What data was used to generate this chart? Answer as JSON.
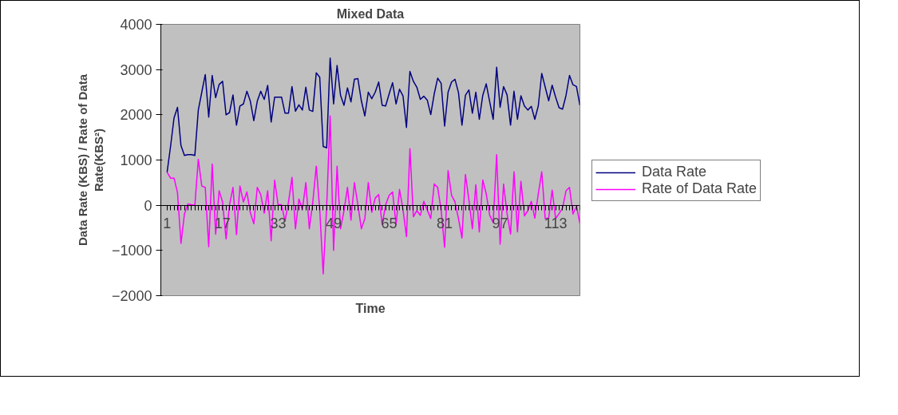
{
  "chart_data": {
    "type": "line",
    "title": "Mixed Data",
    "xlabel": "Time",
    "ylabel": "Data Rate (KBS) / Rate of Data\nRate(KBS²)",
    "categories": [
      "1",
      null,
      null,
      null,
      null,
      null,
      null,
      null,
      null,
      null,
      null,
      null,
      null,
      null,
      null,
      null,
      "17",
      null,
      null,
      null,
      null,
      null,
      null,
      null,
      null,
      null,
      null,
      null,
      null,
      null,
      null,
      null,
      "33",
      null,
      null,
      null,
      null,
      null,
      null,
      null,
      null,
      null,
      null,
      null,
      null,
      null,
      null,
      null,
      "49",
      null,
      null,
      null,
      null,
      null,
      null,
      null,
      null,
      null,
      null,
      null,
      null,
      null,
      null,
      null,
      "65",
      null,
      null,
      null,
      null,
      null,
      null,
      null,
      null,
      null,
      null,
      null,
      null,
      null,
      null,
      null,
      "81",
      null,
      null,
      null,
      null,
      null,
      null,
      null,
      null,
      null,
      null,
      null,
      null,
      null,
      null,
      null,
      "97",
      null,
      null,
      null,
      null,
      null,
      null,
      null,
      null,
      null,
      null,
      null,
      null,
      null,
      null,
      null,
      "113",
      null,
      null,
      null,
      null,
      null,
      null,
      null
    ],
    "series": [
      {
        "name": "Data Rate",
        "color": "#000080",
        "values": [
          730,
          1300,
          1930,
          2165,
          1320,
          1100,
          1120,
          1120,
          1100,
          2105,
          2500,
          2890,
          1950,
          2870,
          2380,
          2670,
          2740,
          2000,
          2050,
          2440,
          1770,
          2195,
          2240,
          2520,
          2300,
          1870,
          2300,
          2520,
          2340,
          2650,
          1840,
          2390,
          2390,
          2390,
          2035,
          2035,
          2625,
          2080,
          2220,
          2105,
          2610,
          2105,
          2075,
          2930,
          2830,
          1300,
          1270,
          3255,
          2240,
          3090,
          2430,
          2210,
          2595,
          2285,
          2785,
          2800,
          2310,
          1975,
          2500,
          2355,
          2500,
          2725,
          2210,
          2195,
          2460,
          2710,
          2240,
          2565,
          2420,
          1720,
          2960,
          2740,
          2610,
          2340,
          2410,
          2325,
          2005,
          2460,
          2810,
          2695,
          1750,
          2500,
          2725,
          2785,
          2490,
          1770,
          2430,
          2550,
          2035,
          2500,
          1900,
          2430,
          2685,
          2285,
          1900,
          3050,
          2165,
          2625,
          2440,
          1770,
          2520,
          1900,
          2420,
          2195,
          2105,
          2185,
          1900,
          2195,
          2915,
          2610,
          2310,
          2655,
          2390,
          2155,
          2125,
          2430,
          2870,
          2665,
          2625,
          2210
        ]
      },
      {
        "name": "Rate of Data Rate",
        "color": "#ff00ff",
        "values": [
          730,
          600,
          600,
          280,
          -845,
          -195,
          30,
          10,
          -5,
          1015,
          425,
          395,
          -920,
          910,
          -640,
          320,
          70,
          -745,
          10,
          395,
          -650,
          425,
          70,
          295,
          -165,
          -410,
          395,
          235,
          -175,
          320,
          -785,
          555,
          10,
          10,
          -355,
          70,
          615,
          -520,
          140,
          -95,
          500,
          -520,
          70,
          865,
          -100,
          -1520,
          -30,
          1975,
          -1000,
          865,
          -520,
          -120,
          395,
          -330,
          500,
          10,
          -520,
          -295,
          500,
          -155,
          160,
          235,
          -430,
          10,
          220,
          295,
          -430,
          350,
          -95,
          -695,
          1250,
          -255,
          -120,
          -225,
          85,
          -105,
          -295,
          470,
          395,
          -115,
          -930,
          765,
          220,
          70,
          -300,
          -725,
          680,
          120,
          -520,
          455,
          -590,
          560,
          250,
          -225,
          -385,
          1120,
          -860,
          470,
          -185,
          -640,
          740,
          -590,
          530,
          -235,
          -120,
          85,
          -285,
          250,
          740,
          -295,
          -285,
          335,
          -295,
          -185,
          -60,
          320,
          395,
          -195,
          -20,
          -400
        ]
      }
    ],
    "ylim": [
      -2000,
      4000
    ],
    "yticks": [
      -2000,
      -1000,
      0,
      1000,
      2000,
      3000,
      4000
    ],
    "grid": false,
    "legend": "right",
    "marker": "none",
    "line_style": "solid"
  }
}
